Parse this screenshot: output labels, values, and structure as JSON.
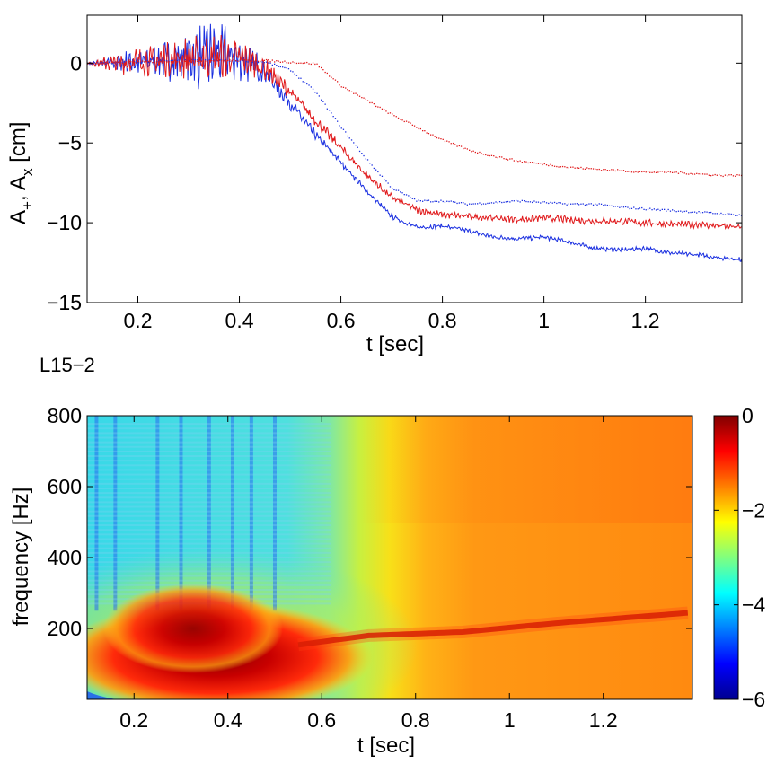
{
  "chart_data": [
    {
      "type": "line",
      "title": "",
      "xlabel": "t [sec]",
      "ylabel_parts": [
        "A",
        "+",
        ", A",
        "x",
        " [cm]"
      ],
      "xlim": [
        0.1,
        1.39
      ],
      "ylim": [
        -15,
        3
      ],
      "xticks": [
        0.2,
        0.4,
        0.6,
        0.8,
        1,
        1.2
      ],
      "xtick_labels": [
        "0.2",
        "0.4",
        "0.6",
        "0.8",
        "1",
        "1.2"
      ],
      "yticks": [
        0,
        -5,
        -10,
        -15
      ],
      "ytick_labels": [
        "0",
        "−5",
        "−10",
        "−15"
      ],
      "colors": {
        "blue": "#1a2fe0",
        "red": "#e0191b"
      },
      "series": [
        {
          "name": "A+ (blue, solid)",
          "color": "blue",
          "style": "solid",
          "x": [
            0.1,
            0.15,
            0.2,
            0.25,
            0.3,
            0.35,
            0.4,
            0.45,
            0.5,
            0.55,
            0.6,
            0.65,
            0.7,
            0.75,
            0.8,
            0.85,
            0.9,
            0.95,
            1.0,
            1.05,
            1.1,
            1.15,
            1.2,
            1.25,
            1.3,
            1.35,
            1.39
          ],
          "y": [
            0,
            0,
            0.1,
            0.2,
            0.4,
            0.5,
            0.3,
            -0.5,
            -2.5,
            -4.5,
            -6.2,
            -8.0,
            -9.6,
            -10.3,
            -10.2,
            -10.5,
            -10.9,
            -11.0,
            -10.9,
            -11.2,
            -11.6,
            -11.7,
            -11.6,
            -11.9,
            -12.0,
            -12.2,
            -12.3
          ],
          "noise": [
            0,
            0.4,
            0.6,
            0.8,
            1.2,
            1.6,
            1.0,
            0.5,
            0.3,
            0.2,
            0.15,
            0.12,
            0.12,
            0.1,
            0.1,
            0.1,
            0.1,
            0.1,
            0.1,
            0.1,
            0.1,
            0.1,
            0.1,
            0.1,
            0.1,
            0.1,
            0.1
          ]
        },
        {
          "name": "Ax (red, solid)",
          "color": "red",
          "style": "solid",
          "x": [
            0.1,
            0.15,
            0.2,
            0.25,
            0.3,
            0.35,
            0.4,
            0.45,
            0.5,
            0.55,
            0.6,
            0.65,
            0.7,
            0.75,
            0.8,
            0.85,
            0.9,
            0.95,
            1.0,
            1.05,
            1.1,
            1.15,
            1.2,
            1.25,
            1.3,
            1.35,
            1.39
          ],
          "y": [
            0,
            0,
            0.1,
            0.2,
            0.3,
            0.4,
            0.3,
            -0.3,
            -1.8,
            -3.6,
            -5.3,
            -7.0,
            -8.4,
            -9.2,
            -9.5,
            -9.6,
            -9.7,
            -9.8,
            -9.7,
            -9.8,
            -9.9,
            -9.9,
            -10.0,
            -10.1,
            -10.1,
            -10.2,
            -10.3
          ],
          "noise": [
            0,
            0.4,
            0.6,
            0.7,
            0.9,
            1.0,
            0.8,
            0.5,
            0.3,
            0.25,
            0.2,
            0.18,
            0.15,
            0.15,
            0.15,
            0.15,
            0.15,
            0.15,
            0.15,
            0.15,
            0.15,
            0.15,
            0.15,
            0.15,
            0.15,
            0.15,
            0.15
          ]
        },
        {
          "name": "A+ (blue, dotted)",
          "color": "blue",
          "style": "dotted",
          "x": [
            0.1,
            0.2,
            0.3,
            0.4,
            0.45,
            0.5,
            0.55,
            0.6,
            0.65,
            0.7,
            0.75,
            0.8,
            0.85,
            0.9,
            0.95,
            1.0,
            1.05,
            1.1,
            1.15,
            1.2,
            1.25,
            1.3,
            1.35,
            1.39
          ],
          "y": [
            0,
            0.1,
            0.2,
            0.2,
            0.1,
            -0.4,
            -1.8,
            -4.0,
            -6.0,
            -7.8,
            -8.6,
            -8.6,
            -8.8,
            -8.7,
            -8.6,
            -8.7,
            -8.8,
            -8.8,
            -9.0,
            -9.1,
            -9.2,
            -9.3,
            -9.4,
            -9.5
          ]
        },
        {
          "name": "Ax (red, dotted)",
          "color": "red",
          "style": "dotted",
          "x": [
            0.1,
            0.2,
            0.3,
            0.4,
            0.45,
            0.5,
            0.55,
            0.6,
            0.65,
            0.7,
            0.75,
            0.8,
            0.85,
            0.9,
            0.95,
            1.0,
            1.05,
            1.1,
            1.15,
            1.2,
            1.25,
            1.3,
            1.35,
            1.39
          ],
          "y": [
            0,
            0.1,
            0.2,
            0.2,
            0.2,
            0.1,
            0,
            -1.4,
            -2.3,
            -3.2,
            -4.0,
            -4.8,
            -5.4,
            -5.8,
            -6.1,
            -6.3,
            -6.5,
            -6.6,
            -6.7,
            -6.8,
            -6.8,
            -6.9,
            -7.0,
            -7.0
          ]
        }
      ]
    },
    {
      "type": "heatmap",
      "title": "L15−2",
      "xlabel": "t [sec]",
      "ylabel": "frequency [Hz]",
      "xlim": [
        0.1,
        1.39
      ],
      "ylim": [
        0,
        800
      ],
      "xticks": [
        0.2,
        0.4,
        0.6,
        0.8,
        1,
        1.2
      ],
      "xtick_labels": [
        "0.2",
        "0.4",
        "0.6",
        "0.8",
        "1",
        "1.2"
      ],
      "yticks": [
        200,
        400,
        600,
        800
      ],
      "ytick_labels": [
        "200",
        "400",
        "600",
        "800"
      ],
      "colorbar": {
        "range": [
          -6,
          0
        ],
        "ticks": [
          0,
          -2,
          -4,
          -6
        ],
        "tick_labels": [
          "0",
          "−2",
          "−4",
          "−6"
        ],
        "colormap": "jet"
      },
      "ridge_hz": [
        [
          0.1,
          130
        ],
        [
          0.3,
          150
        ],
        [
          0.5,
          145
        ],
        [
          0.7,
          180
        ],
        [
          0.9,
          190
        ],
        [
          1.1,
          215
        ],
        [
          1.39,
          245
        ]
      ],
      "dark_stripes_t": [
        0.12,
        0.16,
        0.25,
        0.3,
        0.36,
        0.41,
        0.45,
        0.5
      ]
    }
  ]
}
